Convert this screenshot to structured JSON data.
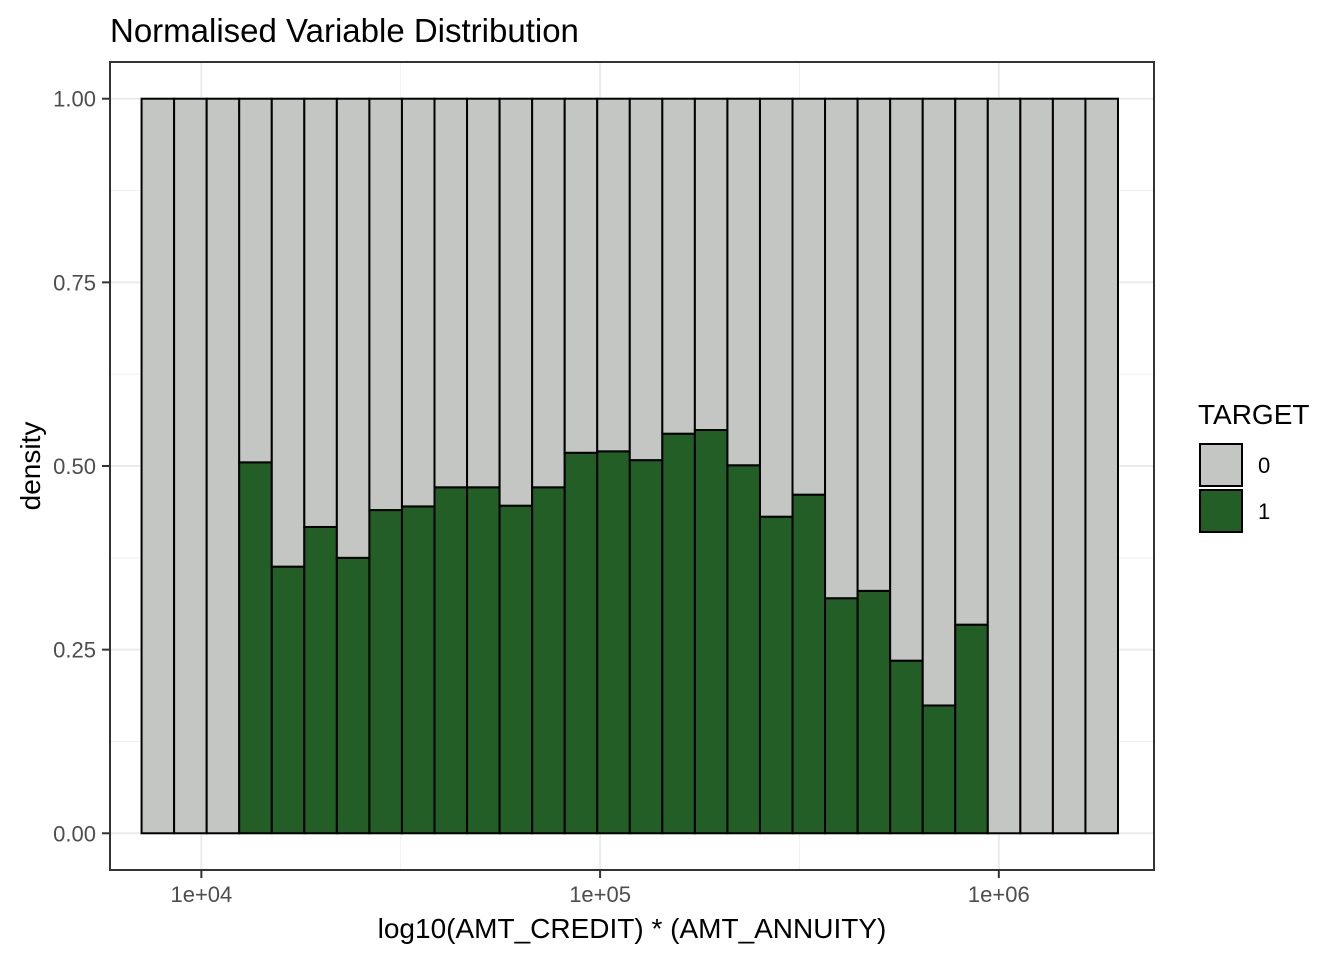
{
  "chart_data": {
    "type": "bar",
    "subtype": "stacked-fill-histogram",
    "title": "Normalised Variable Distribution",
    "xlabel": "log10(AMT_CREDIT) * (AMT_ANNUITY)",
    "ylabel": "density",
    "x_scale": "log10",
    "xlim": [
      5900,
      2450000
    ],
    "ylim": [
      -0.05,
      1.05
    ],
    "x_ticks": [
      {
        "value": 10000,
        "label": "1e+04"
      },
      {
        "value": 100000,
        "label": "1e+05"
      },
      {
        "value": 1000000,
        "label": "1e+06"
      }
    ],
    "y_ticks": [
      {
        "value": 0,
        "label": "0.00"
      },
      {
        "value": 0.25,
        "label": "0.25"
      },
      {
        "value": 0.5,
        "label": "0.50"
      },
      {
        "value": 0.75,
        "label": "0.75"
      },
      {
        "value": 1,
        "label": "1.00"
      }
    ],
    "bin_edges_range": [
      7080,
      1990000
    ],
    "bins": 30,
    "series": [
      {
        "name": "0",
        "color": "#c4c6c3",
        "values": [
          1.0,
          1.0,
          1.0,
          0.495,
          0.637,
          0.583,
          0.625,
          0.56,
          0.555,
          0.529,
          0.529,
          0.554,
          0.529,
          0.482,
          0.48,
          0.492,
          0.456,
          0.451,
          0.499,
          0.569,
          0.539,
          0.68,
          0.67,
          0.765,
          0.826,
          0.716,
          1.0,
          1.0,
          1.0,
          1.0
        ]
      },
      {
        "name": "1",
        "color": "#225e26",
        "values": [
          0.0,
          0.0,
          0.0,
          0.505,
          0.363,
          0.417,
          0.375,
          0.44,
          0.445,
          0.471,
          0.471,
          0.446,
          0.471,
          0.518,
          0.52,
          0.508,
          0.544,
          0.549,
          0.501,
          0.431,
          0.461,
          0.32,
          0.33,
          0.235,
          0.174,
          0.284,
          0.0,
          0.0,
          0.0,
          0.0
        ]
      }
    ],
    "legend": {
      "title": "TARGET",
      "position": "right",
      "entries": [
        "0",
        "1"
      ]
    },
    "grid": true,
    "theme": "bw"
  }
}
